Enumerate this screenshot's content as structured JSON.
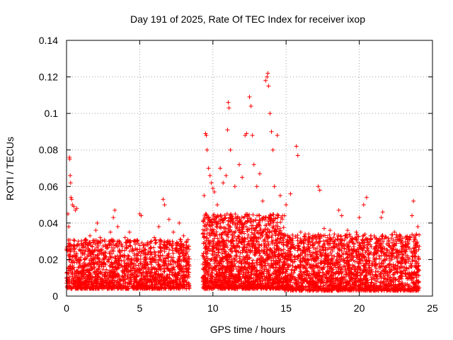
{
  "chart_data": {
    "type": "scatter",
    "title": "Day 191 of 2025, Rate Of TEC Index for receiver ixop",
    "xlabel": "GPS time / hours",
    "ylabel": "ROTI / TECUs",
    "xlim": [
      0,
      25
    ],
    "ylim": [
      0,
      0.14
    ],
    "xticks": [
      "0",
      "5",
      "10",
      "15",
      "20",
      "25"
    ],
    "yticks": [
      "0",
      "0.02",
      "0.04",
      "0.06",
      "0.08",
      "0.1",
      "0.12",
      "0.14"
    ],
    "grid": true,
    "marker": "+",
    "color": "#ff0000",
    "series": [
      {
        "points": [
          [
            0.1,
            0.045
          ],
          [
            0.15,
            0.038
          ],
          [
            0.2,
            0.076
          ],
          [
            0.22,
            0.075
          ],
          [
            0.25,
            0.066
          ],
          [
            0.28,
            0.062
          ],
          [
            0.3,
            0.054
          ],
          [
            0.35,
            0.053
          ],
          [
            0.4,
            0.05
          ],
          [
            0.5,
            0.049
          ],
          [
            0.6,
            0.047
          ],
          [
            0.7,
            0.048
          ],
          [
            0.8,
            0.03
          ],
          [
            1.0,
            0.028
          ],
          [
            1.3,
            0.031
          ],
          [
            1.6,
            0.033
          ],
          [
            2.0,
            0.036
          ],
          [
            2.1,
            0.04
          ],
          [
            2.3,
            0.032
          ],
          [
            2.6,
            0.03
          ],
          [
            3.0,
            0.035
          ],
          [
            3.2,
            0.043
          ],
          [
            3.3,
            0.047
          ],
          [
            3.5,
            0.038
          ],
          [
            4.0,
            0.032
          ],
          [
            4.3,
            0.035
          ],
          [
            4.6,
            0.03
          ],
          [
            5.0,
            0.045
          ],
          [
            5.1,
            0.044
          ],
          [
            5.5,
            0.028
          ],
          [
            6.0,
            0.032
          ],
          [
            6.3,
            0.038
          ],
          [
            6.6,
            0.053
          ],
          [
            6.7,
            0.05
          ],
          [
            7.0,
            0.042
          ],
          [
            7.3,
            0.035
          ],
          [
            7.7,
            0.04
          ],
          [
            8.0,
            0.033
          ],
          [
            8.2,
            0.03
          ],
          [
            9.4,
            0.055
          ],
          [
            9.5,
            0.089
          ],
          [
            9.55,
            0.088
          ],
          [
            9.6,
            0.08
          ],
          [
            9.7,
            0.07
          ],
          [
            9.8,
            0.066
          ],
          [
            9.9,
            0.062
          ],
          [
            10.0,
            0.059
          ],
          [
            10.1,
            0.057
          ],
          [
            10.3,
            0.05
          ],
          [
            10.5,
            0.07
          ],
          [
            10.7,
            0.062
          ],
          [
            10.9,
            0.066
          ],
          [
            11.0,
            0.091
          ],
          [
            11.05,
            0.106
          ],
          [
            11.1,
            0.103
          ],
          [
            11.2,
            0.08
          ],
          [
            11.5,
            0.06
          ],
          [
            11.8,
            0.072
          ],
          [
            12.0,
            0.065
          ],
          [
            12.2,
            0.088
          ],
          [
            12.3,
            0.089
          ],
          [
            12.5,
            0.109
          ],
          [
            12.6,
            0.104
          ],
          [
            12.7,
            0.088
          ],
          [
            12.8,
            0.072
          ],
          [
            13.0,
            0.06
          ],
          [
            13.2,
            0.067
          ],
          [
            13.4,
            0.052
          ],
          [
            13.6,
            0.118
          ],
          [
            13.7,
            0.12
          ],
          [
            13.75,
            0.122
          ],
          [
            13.8,
            0.115
          ],
          [
            13.9,
            0.1
          ],
          [
            14.0,
            0.09
          ],
          [
            14.1,
            0.08
          ],
          [
            14.2,
            0.06
          ],
          [
            14.4,
            0.088
          ],
          [
            14.6,
            0.055
          ],
          [
            15.0,
            0.05
          ],
          [
            15.3,
            0.056
          ],
          [
            15.7,
            0.082
          ],
          [
            15.8,
            0.077
          ],
          [
            16.0,
            0.035
          ],
          [
            16.3,
            0.034
          ],
          [
            16.6,
            0.03
          ],
          [
            17.0,
            0.033
          ],
          [
            17.2,
            0.06
          ],
          [
            17.3,
            0.058
          ],
          [
            17.6,
            0.037
          ],
          [
            18.0,
            0.036
          ],
          [
            18.3,
            0.034
          ],
          [
            18.6,
            0.047
          ],
          [
            18.8,
            0.044
          ],
          [
            19.2,
            0.036
          ],
          [
            19.5,
            0.031
          ],
          [
            19.8,
            0.035
          ],
          [
            20.0,
            0.043
          ],
          [
            20.3,
            0.05
          ],
          [
            20.5,
            0.054
          ],
          [
            20.8,
            0.033
          ],
          [
            21.2,
            0.031
          ],
          [
            21.5,
            0.043
          ],
          [
            21.6,
            0.046
          ],
          [
            22.0,
            0.03
          ],
          [
            22.4,
            0.035
          ],
          [
            22.8,
            0.033
          ],
          [
            23.2,
            0.028
          ],
          [
            23.5,
            0.032
          ],
          [
            23.6,
            0.044
          ],
          [
            23.7,
            0.052
          ],
          [
            24.0,
            0.038
          ]
        ]
      }
    ],
    "dense_segments": [
      {
        "x_start": 0.0,
        "x_end": 8.4,
        "y_low": 0.004,
        "y_high": 0.031,
        "count": 1700
      },
      {
        "x_start": 9.3,
        "x_end": 14.9,
        "y_low": 0.004,
        "y_high": 0.045,
        "count": 1700
      },
      {
        "x_start": 14.9,
        "x_end": 24.1,
        "y_low": 0.003,
        "y_high": 0.034,
        "count": 2000
      }
    ]
  }
}
